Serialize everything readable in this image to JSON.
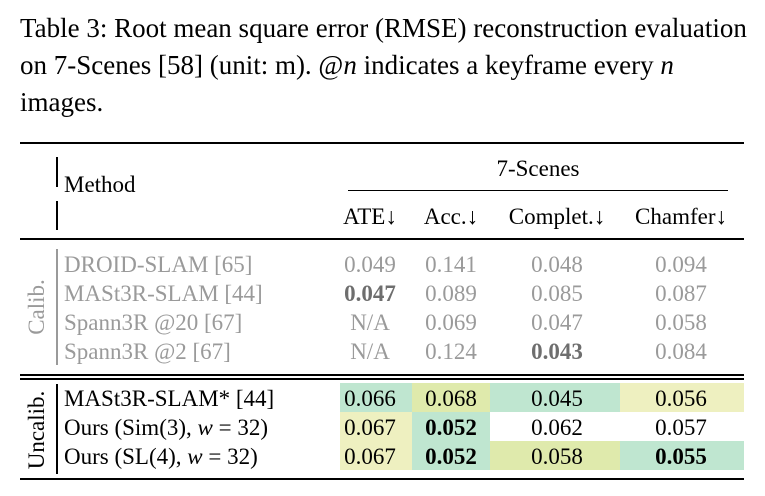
{
  "caption": {
    "label": "Table 3:",
    "text_part1": "Root mean square error (RMSE) reconstruction evaluation on 7-Scenes [58] (unit: m). @",
    "var_n": "n",
    "text_part2": " indicates a keyframe every ",
    "text_part3": " images."
  },
  "header": {
    "method": "Method",
    "group": "7-Scenes",
    "columns": [
      "ATE↓",
      "Acc.↓",
      "Complet.↓",
      "Chamfer↓"
    ]
  },
  "groups": [
    {
      "label": "Calib."
    },
    {
      "label": "Uncalib."
    }
  ],
  "colors": {
    "teal": "#bfe6d0",
    "lime": "#dfeaac",
    "pale": "#eef0c0",
    "gray_text": "#9a9a9a"
  },
  "rows": [
    {
      "method": "DROID-SLAM [65]",
      "values": [
        "0.049",
        "0.141",
        "0.048",
        "0.094"
      ],
      "group": "Calib.",
      "gray": true,
      "bold": [
        false,
        false,
        false,
        false
      ],
      "bg": [
        "",
        "",
        "",
        ""
      ]
    },
    {
      "method": "MASt3R-SLAM [44]",
      "values": [
        "0.047",
        "0.089",
        "0.085",
        "0.087"
      ],
      "group": "Calib.",
      "gray": true,
      "bold": [
        true,
        false,
        false,
        false
      ],
      "bg": [
        "",
        "",
        "",
        ""
      ]
    },
    {
      "method": "Spann3R @20 [67]",
      "values": [
        "N/A",
        "0.069",
        "0.047",
        "0.058"
      ],
      "group": "Calib.",
      "gray": true,
      "bold": [
        false,
        false,
        false,
        false
      ],
      "bg": [
        "",
        "",
        "",
        ""
      ]
    },
    {
      "method": "Spann3R @2 [67]",
      "values": [
        "N/A",
        "0.124",
        "0.043",
        "0.084"
      ],
      "group": "Calib.",
      "gray": true,
      "bold": [
        false,
        false,
        true,
        false
      ],
      "bg": [
        "",
        "",
        "",
        ""
      ]
    },
    {
      "method": "MASt3R-SLAM* [44]",
      "values": [
        "0.066",
        "0.068",
        "0.045",
        "0.056"
      ],
      "group": "Uncalib.",
      "gray": false,
      "bold": [
        false,
        false,
        false,
        false
      ],
      "bg": [
        "teal",
        "lime",
        "teal",
        "pale"
      ]
    },
    {
      "method_prefix": "Ours (Sim(3), ",
      "method_var": "w",
      "method_suffix": " = 32)",
      "values": [
        "0.067",
        "0.052",
        "0.062",
        "0.057"
      ],
      "group": "Uncalib.",
      "gray": false,
      "bold": [
        false,
        true,
        false,
        false
      ],
      "bg": [
        "pale",
        "teal",
        "",
        ""
      ]
    },
    {
      "method_prefix": "Ours (SL(4), ",
      "method_var": "w",
      "method_suffix": " = 32)",
      "values": [
        "0.067",
        "0.052",
        "0.058",
        "0.055"
      ],
      "group": "Uncalib.",
      "gray": false,
      "bold": [
        false,
        true,
        false,
        true
      ],
      "bg": [
        "pale",
        "teal",
        "lime",
        "teal"
      ]
    }
  ]
}
